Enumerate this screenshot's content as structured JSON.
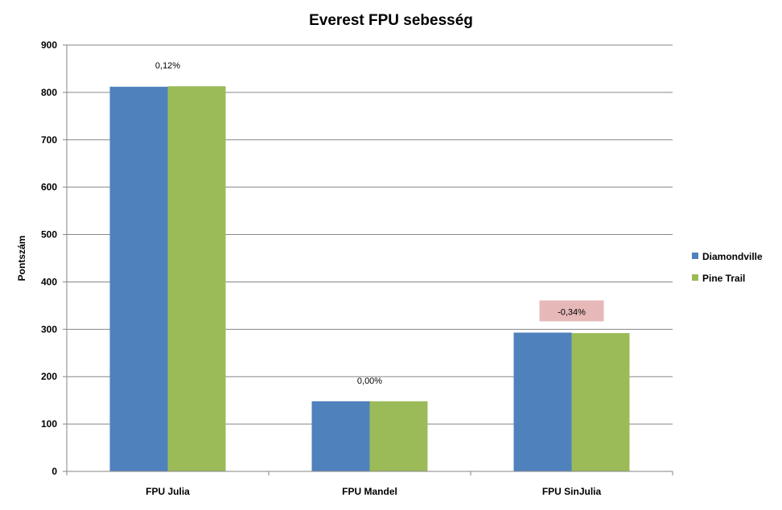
{
  "chart_data": {
    "type": "bar",
    "title": "Everest FPU sebesség",
    "xlabel": "",
    "ylabel": "Pontszám",
    "ylim": [
      0,
      900
    ],
    "yticks": [
      0,
      100,
      200,
      300,
      400,
      500,
      600,
      700,
      800,
      900
    ],
    "grid": true,
    "legend_position": "right",
    "categories": [
      "FPU Julia",
      "FPU Mandel",
      "FPU SinJulia"
    ],
    "series": [
      {
        "name": "Diamondville",
        "color": "#4f81bd",
        "values": [
          812,
          148,
          293
        ]
      },
      {
        "name": "Pine Trail",
        "color": "#9bbb59",
        "values": [
          813,
          148,
          292
        ]
      }
    ],
    "annotations": [
      {
        "category": "FPU Julia",
        "text": "0,12%",
        "highlight": false
      },
      {
        "category": "FPU Mandel",
        "text": "0,00%",
        "highlight": false
      },
      {
        "category": "FPU SinJulia",
        "text": "-0,34%",
        "highlight": true,
        "highlight_color": "#e6b9b8"
      }
    ]
  }
}
